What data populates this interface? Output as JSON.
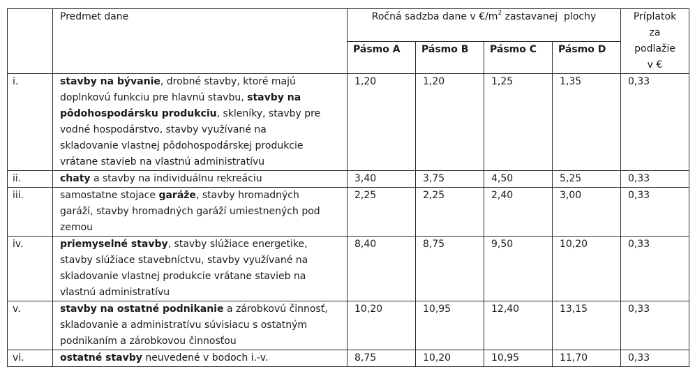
{
  "header": {
    "subject": "Predmet dane",
    "rate_group_prefix": "Ročná sadzba dane v €/m",
    "rate_group_sup": "2",
    "rate_group_suffix": " zastavanej  plochy",
    "zones": [
      "Pásmo A",
      "Pásmo B",
      "Pásmo C",
      "Pásmo D"
    ],
    "surcharge_lines": [
      "Príplatok",
      "za",
      "podlažie",
      "v €"
    ]
  },
  "rows": [
    {
      "num": "i.",
      "subject_lines": [
        [
          {
            "t": "stavby na bývanie",
            "b": true
          },
          {
            "t": ", drobné stavby, ktoré majú"
          }
        ],
        [
          {
            "t": "doplnkovú funkciu pre hlavnú stavbu, "
          },
          {
            "t": "stavby na",
            "b": true
          }
        ],
        [
          {
            "t": "pôdohospodársku produkciu",
            "b": true
          },
          {
            "t": ", skleníky, stavby pre"
          }
        ],
        [
          {
            "t": "vodné hospodárstvo, stavby využívané na"
          }
        ],
        [
          {
            "t": "skladovanie vlastnej pôdohospodárskej produkcie"
          }
        ],
        [
          {
            "t": "vrátane stavieb na vlastnú administratívu"
          }
        ]
      ],
      "values": [
        "1,20",
        "1,20",
        "1,25",
        "1,35"
      ],
      "surcharge": "0,33"
    },
    {
      "num": "ii.",
      "subject_lines": [
        [
          {
            "t": "chaty",
            "b": true
          },
          {
            "t": " a stavby na individuálnu rekreáciu"
          }
        ]
      ],
      "values": [
        "3,40",
        "3,75",
        "4,50",
        "5,25"
      ],
      "surcharge": "0,33"
    },
    {
      "num": "iii.",
      "subject_lines": [
        [
          {
            "t": "samostatne stojace "
          },
          {
            "t": "garáže",
            "b": true
          },
          {
            "t": ", stavby hromadných"
          }
        ],
        [
          {
            "t": "garáží, stavby hromadných garáží umiestnených pod"
          }
        ],
        [
          {
            "t": "zemou"
          }
        ]
      ],
      "values": [
        "2,25",
        "2,25",
        "2,40",
        "3,00"
      ],
      "surcharge": "0,33"
    },
    {
      "num": "iv.",
      "subject_lines": [
        [
          {
            "t": "priemyselné stavby",
            "b": true
          },
          {
            "t": ", stavby slúžiace energetike,"
          }
        ],
        [
          {
            "t": "stavby slúžiace stavebníctvu, stavby využívané na"
          }
        ],
        [
          {
            "t": "skladovanie vlastnej produkcie vrátane stavieb na"
          }
        ],
        [
          {
            "t": "vlastnú administratívu"
          }
        ]
      ],
      "values": [
        "8,40",
        "8,75",
        "9,50",
        "10,20"
      ],
      "surcharge": "0,33"
    },
    {
      "num": "v.",
      "subject_lines": [
        [
          {
            "t": "stavby na ostatné podnikanie",
            "b": true
          },
          {
            "t": " a zárobkovú činnosť,"
          }
        ],
        [
          {
            "t": "skladovanie a administratívu súvisiacu s ostatným"
          }
        ],
        [
          {
            "t": "podnikaním a zárobkovou činnosťou"
          }
        ]
      ],
      "values": [
        "10,20",
        "10,95",
        "12,40",
        "13,15"
      ],
      "surcharge": "0,33"
    },
    {
      "num": "vi.",
      "subject_lines": [
        [
          {
            "t": "ostatné stavby",
            "b": true
          },
          {
            "t": " neuvedené v bodoch i.-v."
          }
        ]
      ],
      "values": [
        "8,75",
        "10,20",
        "10,95",
        "11,70"
      ],
      "surcharge": "0,33"
    }
  ]
}
